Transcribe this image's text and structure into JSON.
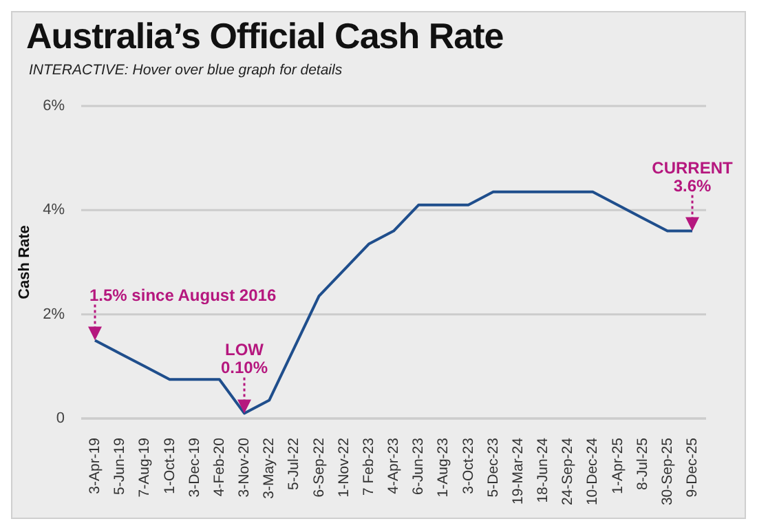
{
  "chart_data": {
    "type": "line",
    "title": "Australia’s Official Cash Rate",
    "subtitle": "INTERACTIVE: Hover over blue graph for details",
    "ylabel": "Cash Rate",
    "categories": [
      "3-Apr-19",
      "5-Jun-19",
      "7-Aug-19",
      "1-Oct-19",
      "3-Dec-19",
      "4-Feb-20",
      "3-Nov-20",
      "3-May-22",
      "5-Jul-22",
      "6-Sep-22",
      "1-Nov-22",
      "7 Feb-23",
      "4-Apr-23",
      "6-Jun-23",
      "1-Aug-23",
      "3-Oct-23",
      "5-Dec-23",
      "19-Mar-24",
      "18-Jun-24",
      "24-Sep-24",
      "10-Dec-24",
      "1-Apr-25",
      "8-Jul-25",
      "30-Sep-25",
      "9-Dec-25"
    ],
    "series": [
      {
        "color": "#1f4e8c",
        "values": [
          1.5,
          1.25,
          1.0,
          0.75,
          0.75,
          0.75,
          0.1,
          0.35,
          1.35,
          2.35,
          2.85,
          3.35,
          3.6,
          4.1,
          4.1,
          4.1,
          4.35,
          4.35,
          4.35,
          4.35,
          4.35,
          4.1,
          3.85,
          3.6,
          3.6
        ]
      }
    ],
    "ylim": [
      0,
      6
    ],
    "yticks": [
      0,
      {
        "value": 2,
        "label": "2%"
      },
      {
        "value": 4,
        "label": "4%"
      },
      {
        "value": 6,
        "label": "6%"
      }
    ],
    "grid": "y",
    "legend": false,
    "marker": "none",
    "line_style": "solid",
    "annotations": [
      {
        "text": "1.5% since August 2016",
        "x": "3-Apr-19",
        "y": 1.5
      },
      {
        "text": "LOW\n0.10%",
        "x": "3-Nov-20",
        "y": 0.1
      },
      {
        "text": "CURRENT\n3.6%",
        "x": "9-Dec-25",
        "y": 3.6
      }
    ]
  }
}
